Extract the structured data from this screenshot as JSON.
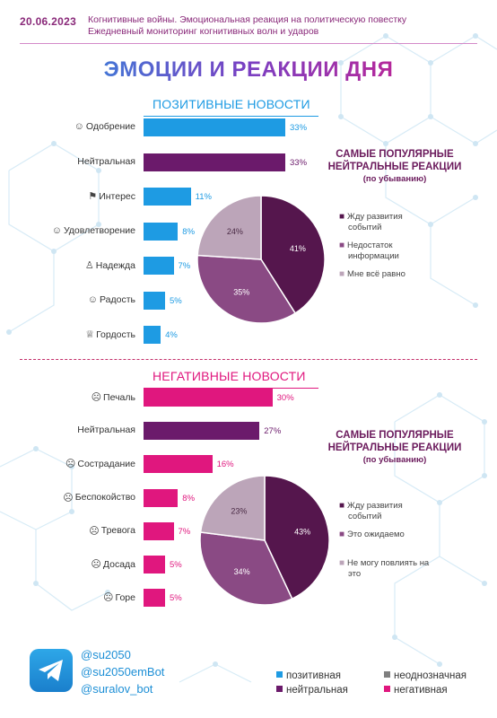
{
  "header": {
    "date": "20.06.2023",
    "subtitle_line1": "Когнитивные войны. Эмоциональная реакция на политическую повестку",
    "subtitle_line2": "Ежедневный мониторинг когнитивных волн и ударов"
  },
  "main_title": "ЭМОЦИИ И РЕАКЦИИ ДНЯ",
  "colors": {
    "positive": "#1e9be3",
    "neutral": "#6b1a6b",
    "negative": "#e0177e",
    "ambiguous": "#7f7f7f",
    "pie_dark": "#55164d",
    "pie_mid": "#8a4a84",
    "pie_light": "#bca5b9"
  },
  "positive": {
    "title": "ПОЗИТИВНЫЕ НОВОСТИ",
    "pie_title_line1": "САМЫЕ ПОПУЛЯРНЫЕ",
    "pie_title_line2": "НЕЙТРАЛЬНЫЕ РЕАКЦИИ",
    "pie_subtitle": "(по убыванию)",
    "legend": [
      {
        "line1": "Жду развития",
        "line2": "событий"
      },
      {
        "line1": "Недостаток",
        "line2": "информации"
      },
      {
        "line1": "Мне всё равно",
        "line2": ""
      }
    ]
  },
  "negative": {
    "title": "НЕГАТИВНЫЕ НОВОСТИ",
    "pie_title_line1": "САМЫЕ ПОПУЛЯРНЫЕ",
    "pie_title_line2": "НЕЙТРАЛЬНЫЕ РЕАКЦИИ",
    "pie_subtitle": "(по убыванию)",
    "legend": [
      {
        "line1": "Жду развития",
        "line2": "событий"
      },
      {
        "line1": "Это ожидаемо",
        "line2": ""
      },
      {
        "line1": "Не могу повлиять на",
        "line2": "это"
      }
    ]
  },
  "chart_data": [
    {
      "type": "bar",
      "orientation": "horizontal",
      "title": "ПОЗИТИВНЫЕ НОВОСТИ",
      "categories": [
        "Одобрение",
        "Нейтральная",
        "Интерес",
        "Удовлетворение",
        "Надежда",
        "Радость",
        "Гордость"
      ],
      "icons": [
        "☺",
        "",
        "⚑",
        "☺",
        "♙",
        "☺",
        "♕"
      ],
      "values": [
        33,
        33,
        11,
        8,
        7,
        5,
        4
      ],
      "value_labels": [
        "33%",
        "33%",
        "11%",
        "8%",
        "7%",
        "5%",
        "4%"
      ],
      "bar_types": [
        "positive",
        "neutral",
        "positive",
        "positive",
        "positive",
        "positive",
        "positive"
      ],
      "max": 33
    },
    {
      "type": "pie",
      "title": "САМЫЕ ПОПУЛЯРНЫЕ НЕЙТРАЛЬНЫЕ РЕАКЦИИ (по убыванию)",
      "labels": [
        "Жду развития событий",
        "Недостаток информации",
        "Мне всё равно"
      ],
      "values": [
        41,
        35,
        24
      ],
      "value_labels": [
        "41%",
        "35%",
        "24%"
      ]
    },
    {
      "type": "bar",
      "orientation": "horizontal",
      "title": "НЕГАТИВНЫЕ НОВОСТИ",
      "categories": [
        "Печаль",
        "Нейтральная",
        "Сострадание",
        "Беспокойство",
        "Тревога",
        "Досада",
        "Горе"
      ],
      "icons": [
        "☹",
        "",
        "☹",
        "☹",
        "☹",
        "☹",
        "☹"
      ],
      "values": [
        30,
        27,
        16,
        8,
        7,
        5,
        5
      ],
      "value_labels": [
        "30%",
        "27%",
        "16%",
        "8%",
        "7%",
        "5%",
        "5%"
      ],
      "bar_types": [
        "negative",
        "neutral",
        "negative",
        "negative",
        "negative",
        "negative",
        "negative"
      ],
      "max": 33
    },
    {
      "type": "pie",
      "title": "САМЫЕ ПОПУЛЯРНЫЕ НЕЙТРАЛЬНЫЕ РЕАКЦИИ (по убыванию)",
      "labels": [
        "Жду развития событий",
        "Это ожидаемо",
        "Не могу повлиять на это"
      ],
      "values": [
        43,
        34,
        23
      ],
      "value_labels": [
        "43%",
        "34%",
        "23%"
      ]
    }
  ],
  "footer": {
    "handles": [
      "@su2050",
      "@su2050emBot",
      "@suralov_bot"
    ],
    "legend": [
      {
        "label": "позитивная",
        "color": "#1e9be3"
      },
      {
        "label": "неоднозначная",
        "color": "#7f7f7f"
      },
      {
        "label": "нейтральная",
        "color": "#6b1a6b"
      },
      {
        "label": "негативная",
        "color": "#e0177e"
      }
    ]
  }
}
